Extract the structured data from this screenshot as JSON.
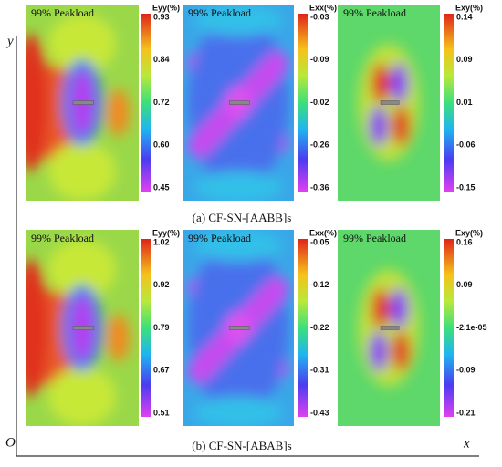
{
  "figure": {
    "rows": [
      {
        "caption": "(a)  CF-SN-[AABB]s",
        "panels": [
          {
            "label": "99% Peakload",
            "colorbar_title": "Eyy(%)",
            "ticks": [
              "0.93",
              "0.84",
              "0.72",
              "0.60",
              "0.45"
            ]
          },
          {
            "label": "99% Peakload",
            "colorbar_title": "Exx(%)",
            "ticks": [
              "-0.03",
              "-0.09",
              "-0.02",
              "-0.26",
              "-0.36"
            ]
          },
          {
            "label": "99% Peakload",
            "colorbar_title": "Exy(%)",
            "ticks": [
              "0.14",
              "0.09",
              "0.01",
              "-0.06",
              "-0.15"
            ]
          }
        ]
      },
      {
        "caption": "(b)  CF-SN-[ABAB]s",
        "panels": [
          {
            "label": "99% Peakload",
            "colorbar_title": "Eyy(%)",
            "ticks": [
              "1.02",
              "0.92",
              "0.79",
              "0.67",
              "0.51"
            ]
          },
          {
            "label": "99% Peakload",
            "colorbar_title": "Exx(%)",
            "ticks": [
              "-0.05",
              "-0.12",
              "-0.22",
              "-0.31",
              "-0.43"
            ]
          },
          {
            "label": "99% Peakload",
            "colorbar_title": "Exy(%)",
            "ticks": [
              "0.16",
              "0.09",
              "-2.1e-05",
              "-0.09",
              "-0.21"
            ]
          }
        ]
      }
    ],
    "axes": {
      "y": "y",
      "x": "x",
      "origin": "O"
    }
  }
}
